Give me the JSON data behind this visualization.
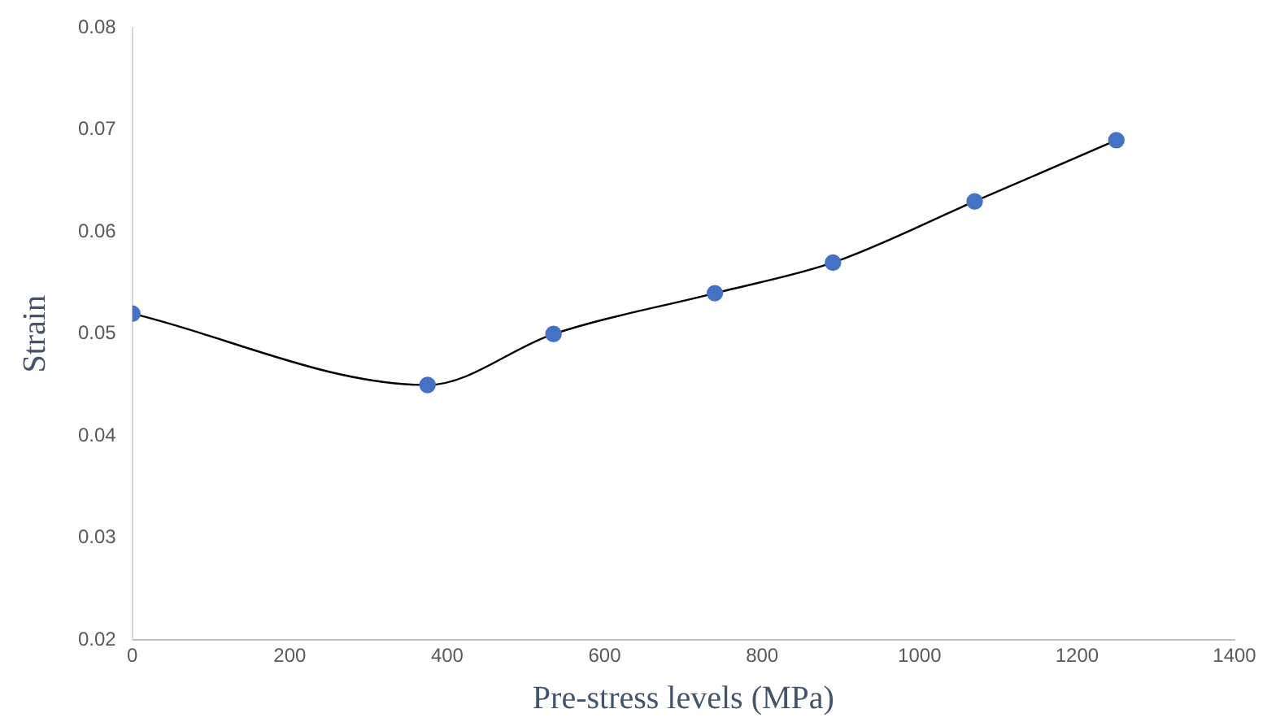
{
  "chart_data": {
    "type": "line",
    "xlabel": "Pre-stress levels (MPa)",
    "ylabel": "Strain",
    "x": [
      0,
      375,
      535,
      740,
      890,
      1070,
      1250
    ],
    "series": [
      {
        "color": "#4472c4",
        "values": [
          0.052,
          0.045,
          0.05,
          0.054,
          0.057,
          0.063,
          0.069
        ]
      }
    ],
    "xlim": [
      0,
      1400
    ],
    "xticks": [
      0,
      200,
      400,
      600,
      800,
      1000,
      1200,
      1400
    ],
    "ylim": [
      0.02,
      0.08
    ],
    "yticks": [
      0.02,
      0.03,
      0.04,
      0.05,
      0.06,
      0.07,
      0.08
    ],
    "grid": false,
    "legend": false,
    "marker": "circle",
    "line_style": "solid"
  }
}
